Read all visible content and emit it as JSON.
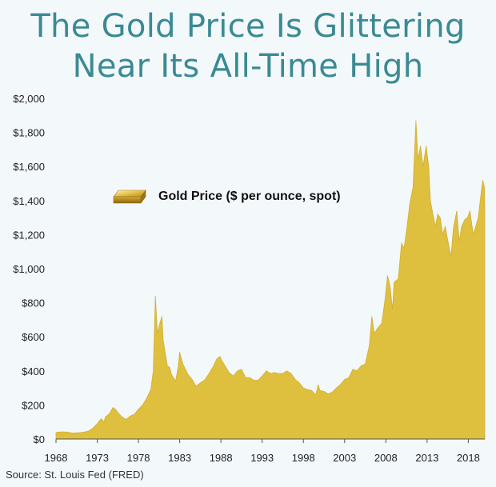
{
  "title": {
    "line1": "The Gold Price Is Glittering",
    "line2": "Near Its All-Time High"
  },
  "source": "Source: St. Louis Fed (FRED)",
  "colors": {
    "fill": "#dfbf3e",
    "title": "#3a8a93",
    "grid": "#cfd6da",
    "background": "#f3f8fb"
  },
  "chart_data": {
    "type": "area",
    "title": "The Gold Price Is Glittering Near Its All-Time High",
    "legend_label": "Gold Price ($ per ounce, spot)",
    "legend_icon": "gold-bar-icon",
    "legend_placement": "upper-left",
    "xlabel": "",
    "ylabel": "",
    "xlim": [
      1968,
      2020
    ],
    "ylim": [
      0,
      2000
    ],
    "grid": false,
    "x_ticks": [
      1968,
      1973,
      1978,
      1983,
      1988,
      1993,
      1998,
      2003,
      2008,
      2013,
      2018
    ],
    "x_tick_labels": [
      "1968",
      "1973",
      "1978",
      "1983",
      "1988",
      "1993",
      "1998",
      "2003",
      "2008",
      "2013",
      "2018"
    ],
    "y_ticks": [
      0,
      200,
      400,
      600,
      800,
      1000,
      1200,
      1400,
      1600,
      1800,
      2000
    ],
    "y_tick_labels": [
      "$0",
      "$200",
      "$400",
      "$600",
      "$800",
      "$1,000",
      "$1,200",
      "$1,400",
      "$1,600",
      "$1,800",
      "$2,000"
    ],
    "series": [
      {
        "name": "Gold Price ($ per ounce, spot)",
        "points": [
          [
            1968,
            38
          ],
          [
            1968.5,
            42
          ],
          [
            1969,
            42
          ],
          [
            1969.5,
            40
          ],
          [
            1970,
            35
          ],
          [
            1970.5,
            36
          ],
          [
            1971,
            38
          ],
          [
            1971.5,
            42
          ],
          [
            1972,
            48
          ],
          [
            1972.5,
            65
          ],
          [
            1973,
            90
          ],
          [
            1973.5,
            120
          ],
          [
            1973.8,
            100
          ],
          [
            1974,
            130
          ],
          [
            1974.5,
            150
          ],
          [
            1974.9,
            185
          ],
          [
            1975.2,
            175
          ],
          [
            1975.6,
            150
          ],
          [
            1976,
            130
          ],
          [
            1976.5,
            115
          ],
          [
            1977,
            135
          ],
          [
            1977.5,
            145
          ],
          [
            1978,
            175
          ],
          [
            1978.5,
            200
          ],
          [
            1979,
            240
          ],
          [
            1979.5,
            290
          ],
          [
            1979.8,
            400
          ],
          [
            1980.05,
            840
          ],
          [
            1980.3,
            620
          ],
          [
            1980.6,
            680
          ],
          [
            1980.85,
            720
          ],
          [
            1981,
            580
          ],
          [
            1981.5,
            430
          ],
          [
            1981.8,
            420
          ],
          [
            1982,
            380
          ],
          [
            1982.5,
            340
          ],
          [
            1982.8,
            420
          ],
          [
            1983,
            510
          ],
          [
            1983.4,
            440
          ],
          [
            1983.8,
            400
          ],
          [
            1984,
            380
          ],
          [
            1984.5,
            350
          ],
          [
            1985,
            310
          ],
          [
            1985.5,
            330
          ],
          [
            1986,
            345
          ],
          [
            1986.5,
            380
          ],
          [
            1987,
            420
          ],
          [
            1987.5,
            470
          ],
          [
            1987.9,
            485
          ],
          [
            1988,
            470
          ],
          [
            1988.5,
            430
          ],
          [
            1989,
            390
          ],
          [
            1989.5,
            370
          ],
          [
            1990,
            400
          ],
          [
            1990.5,
            410
          ],
          [
            1991,
            360
          ],
          [
            1991.5,
            360
          ],
          [
            1992,
            345
          ],
          [
            1992.5,
            345
          ],
          [
            1993,
            370
          ],
          [
            1993.5,
            400
          ],
          [
            1994,
            385
          ],
          [
            1994.5,
            390
          ],
          [
            1995,
            385
          ],
          [
            1995.5,
            385
          ],
          [
            1996,
            400
          ],
          [
            1996.5,
            385
          ],
          [
            1997,
            350
          ],
          [
            1997.5,
            330
          ],
          [
            1998,
            300
          ],
          [
            1998.5,
            290
          ],
          [
            1999,
            285
          ],
          [
            1999.5,
            260
          ],
          [
            1999.8,
            320
          ],
          [
            2000,
            285
          ],
          [
            2000.5,
            280
          ],
          [
            2001,
            265
          ],
          [
            2001.5,
            275
          ],
          [
            2002,
            300
          ],
          [
            2002.5,
            320
          ],
          [
            2003,
            350
          ],
          [
            2003.5,
            360
          ],
          [
            2004,
            410
          ],
          [
            2004.5,
            400
          ],
          [
            2005,
            430
          ],
          [
            2005.5,
            440
          ],
          [
            2006,
            550
          ],
          [
            2006.3,
            720
          ],
          [
            2006.6,
            620
          ],
          [
            2007,
            650
          ],
          [
            2007.5,
            680
          ],
          [
            2007.9,
            820
          ],
          [
            2008.2,
            960
          ],
          [
            2008.5,
            900
          ],
          [
            2008.8,
            760
          ],
          [
            2009,
            920
          ],
          [
            2009.5,
            940
          ],
          [
            2009.9,
            1150
          ],
          [
            2010.2,
            1120
          ],
          [
            2010.5,
            1220
          ],
          [
            2010.9,
            1380
          ],
          [
            2011.3,
            1480
          ],
          [
            2011.65,
            1870
          ],
          [
            2011.9,
            1640
          ],
          [
            2012.2,
            1720
          ],
          [
            2012.5,
            1600
          ],
          [
            2012.9,
            1720
          ],
          [
            2013.2,
            1600
          ],
          [
            2013.4,
            1400
          ],
          [
            2013.7,
            1320
          ],
          [
            2014,
            1250
          ],
          [
            2014.3,
            1320
          ],
          [
            2014.6,
            1300
          ],
          [
            2014.9,
            1200
          ],
          [
            2015.2,
            1250
          ],
          [
            2015.5,
            1170
          ],
          [
            2015.9,
            1070
          ],
          [
            2016.2,
            1240
          ],
          [
            2016.6,
            1340
          ],
          [
            2016.9,
            1160
          ],
          [
            2017.2,
            1250
          ],
          [
            2017.6,
            1290
          ],
          [
            2017.9,
            1300
          ],
          [
            2018.2,
            1340
          ],
          [
            2018.6,
            1200
          ],
          [
            2018.9,
            1250
          ],
          [
            2019.2,
            1300
          ],
          [
            2019.5,
            1420
          ],
          [
            2019.75,
            1520
          ],
          [
            2019.95,
            1480
          ],
          [
            2020,
            1300
          ]
        ]
      }
    ]
  }
}
